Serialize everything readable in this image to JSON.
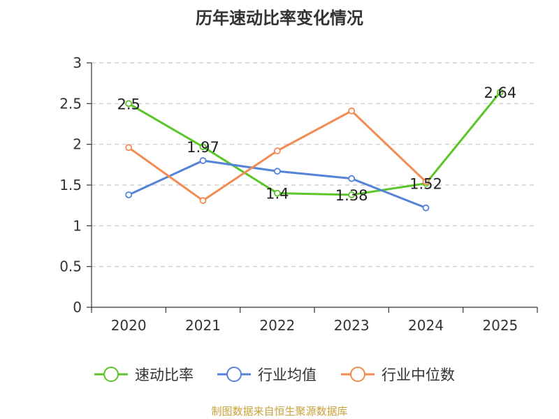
{
  "chart_data": {
    "type": "line",
    "title": "历年速动比率变化情况",
    "categories": [
      "2020",
      "2021",
      "2022",
      "2023",
      "2024",
      "2025"
    ],
    "ylim": [
      0,
      3
    ],
    "yticks": [
      0,
      0.5,
      1,
      1.5,
      2,
      2.5,
      3
    ],
    "grid": true,
    "legend_position": "bottom",
    "series": [
      {
        "name": "速动比率",
        "color": "#5bc52a",
        "values": [
          2.5,
          1.97,
          1.4,
          1.38,
          1.52,
          2.64
        ],
        "labels": [
          "2.5",
          "1.97",
          "1.4",
          "1.38",
          "1.52",
          "2.64"
        ]
      },
      {
        "name": "行业均值",
        "color": "#5483d8",
        "values": [
          1.38,
          1.8,
          1.67,
          1.58,
          1.22,
          null
        ]
      },
      {
        "name": "行业中位数",
        "color": "#f28b54",
        "values": [
          1.96,
          1.31,
          1.92,
          2.41,
          1.54,
          null
        ]
      }
    ]
  },
  "footer": {
    "source": "制图数据来自恒生聚源数据库"
  }
}
